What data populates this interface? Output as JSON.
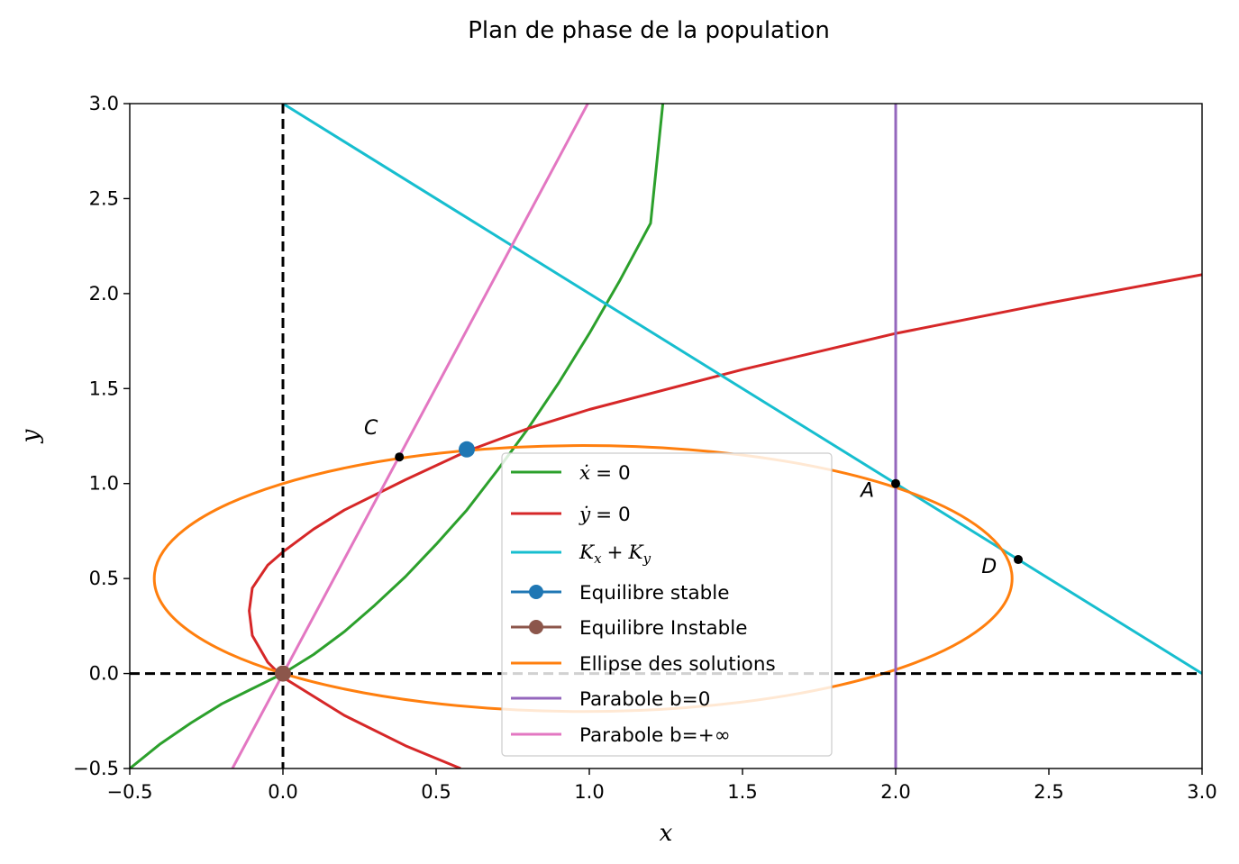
{
  "chart_data": {
    "type": "line",
    "title": "Plan de phase de la population",
    "xlabel": "x",
    "ylabel": "y",
    "xlim": [
      -0.5,
      3.0
    ],
    "ylim": [
      -0.5,
      3.0
    ],
    "xticks": [
      "−0.5",
      "0.0",
      "0.5",
      "1.0",
      "1.5",
      "2.0",
      "2.5",
      "3.0"
    ],
    "yticks": [
      "−0.5",
      "0.0",
      "0.5",
      "1.0",
      "1.5",
      "2.0",
      "2.5",
      "3.0"
    ],
    "xtick_values": [
      -0.5,
      0,
      0.5,
      1.0,
      1.5,
      2.0,
      2.5,
      3.0
    ],
    "ytick_values": [
      -0.5,
      0,
      0.5,
      1.0,
      1.5,
      2.0,
      2.5,
      3.0
    ],
    "grid": false,
    "legend_position": "center-bottom",
    "series": [
      {
        "name": "ẋ = 0",
        "color": "#2ca02c",
        "kind": "x-nullcline",
        "x": [
          -0.5,
          -0.4,
          -0.3,
          -0.2,
          -0.1,
          0.0,
          0.1,
          0.2,
          0.3,
          0.4,
          0.5,
          0.6,
          0.7,
          0.8,
          0.9,
          1.0,
          1.1,
          1.2,
          1.24
        ],
        "y": [
          -0.5,
          -0.37,
          -0.26,
          -0.16,
          -0.08,
          0.0,
          0.1,
          0.22,
          0.36,
          0.51,
          0.68,
          0.86,
          1.07,
          1.29,
          1.53,
          1.79,
          2.07,
          2.37,
          3.0
        ]
      },
      {
        "name": "ẏ = 0",
        "color": "#d62728",
        "kind": "y-nullcline",
        "x": [
          0.58,
          0.4,
          0.2,
          0.0,
          -0.05,
          -0.1,
          -0.11,
          -0.1,
          -0.05,
          0.0,
          0.1,
          0.2,
          0.4,
          0.6,
          0.8,
          1.0,
          1.5,
          2.0,
          2.5,
          3.0
        ],
        "y": [
          -0.5,
          -0.38,
          -0.22,
          -0.02,
          0.06,
          0.2,
          0.33,
          0.45,
          0.57,
          0.64,
          0.76,
          0.86,
          1.02,
          1.17,
          1.29,
          1.39,
          1.6,
          1.79,
          1.95,
          2.1
        ]
      },
      {
        "name": "Kx + Ky",
        "color": "#17becf",
        "kind": "line",
        "x": [
          0.0,
          3.0
        ],
        "y": [
          3.0,
          0.0
        ]
      },
      {
        "name": "Equilibre stable",
        "color": "#1f77b4",
        "kind": "marker",
        "x": [
          0.6
        ],
        "y": [
          1.18
        ]
      },
      {
        "name": "Equilibre Instable",
        "color": "#8c564b",
        "kind": "marker",
        "x": [
          0.0
        ],
        "y": [
          0.0
        ]
      },
      {
        "name": "Ellipse des solutions",
        "color": "#ff7f0e",
        "kind": "ellipse",
        "center": [
          0.98,
          0.5
        ],
        "semi_axes": [
          1.4,
          0.7
        ]
      },
      {
        "name": "Parabole b=0",
        "color": "#9467bd",
        "kind": "vline",
        "x": [
          2.0,
          2.0
        ],
        "y": [
          -0.5,
          3.0
        ]
      },
      {
        "name": "Parabole b=+∞",
        "color": "#e377c2",
        "kind": "line",
        "x": [
          -0.165,
          0.995
        ],
        "y": [
          -0.5,
          3.0
        ]
      }
    ],
    "reference_lines": [
      {
        "orientation": "vertical",
        "value": 0.0,
        "style": "dashed",
        "color": "#000000"
      },
      {
        "orientation": "horizontal",
        "value": 0.0,
        "style": "dashed",
        "color": "#000000"
      }
    ],
    "points": [
      {
        "label": "A",
        "x": 2.0,
        "y": 1.0,
        "label_dx": -0.07,
        "label_dy": -0.07
      },
      {
        "label": "C",
        "x": 0.38,
        "y": 1.14,
        "label_dx": -0.07,
        "label_dy": 0.12
      },
      {
        "label": "D",
        "x": 2.4,
        "y": 0.6,
        "label_dx": -0.07,
        "label_dy": -0.07
      }
    ]
  }
}
